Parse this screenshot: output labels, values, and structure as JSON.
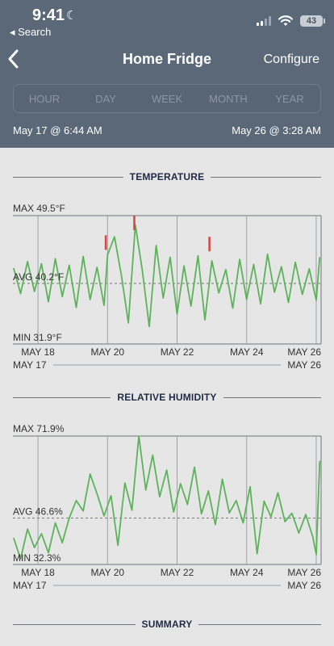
{
  "status_bar": {
    "time": "9:41",
    "back_label": "◂ Search",
    "battery": "43"
  },
  "nav": {
    "title": "Home Fridge",
    "configure": "Configure"
  },
  "segments": [
    "HOUR",
    "DAY",
    "WEEK",
    "MONTH",
    "YEAR"
  ],
  "range": {
    "start": "May 17 @ 6:44 AM",
    "end": "May 26 @ 3:28 AM"
  },
  "sections": {
    "temperature": "TEMPERATURE",
    "humidity": "RELATIVE HUMIDITY",
    "summary": "SUMMARY"
  },
  "colors": {
    "line": "#5cb35a",
    "alert": "#d64545",
    "header": "#5a6878",
    "bg": "#e6e6e6"
  },
  "chart_data": [
    {
      "type": "line",
      "title": "TEMPERATURE",
      "max_label": "MAX 49.5°F",
      "avg_label": "AVG 40.2°F",
      "min_label": "MIN 31.9°F",
      "ylim": [
        31.9,
        49.5
      ],
      "avg": 40.2,
      "x_ticks": [
        "MAY 18",
        "MAY 20",
        "MAY 22",
        "MAY 24",
        "MAY 26"
      ],
      "x_tick_days": [
        18,
        20,
        22,
        24,
        26
      ],
      "xlim": [
        17.28,
        26.14
      ],
      "range_start_label": "MAY 17",
      "range_end_label": "MAY 26",
      "series": [
        {
          "x": [
            17.3,
            17.5,
            17.7,
            17.9,
            18.1,
            18.3,
            18.5,
            18.7,
            18.9,
            19.1,
            19.3,
            19.5,
            19.7,
            19.9,
            20.0,
            20.2,
            20.4,
            20.6,
            20.8,
            21.0,
            21.2,
            21.4,
            21.6,
            21.8,
            22.0,
            22.2,
            22.4,
            22.6,
            22.8,
            23.0,
            23.2,
            23.4,
            23.6,
            23.8,
            24.0,
            24.2,
            24.4,
            24.6,
            24.8,
            25.0,
            25.2,
            25.4,
            25.6,
            25.8,
            26.0,
            26.1
          ],
          "y": [
            42.3,
            38.8,
            43.2,
            39.1,
            42.9,
            37.7,
            43.6,
            38.4,
            42.7,
            36.9,
            43.9,
            38.0,
            42.4,
            37.2,
            44.1,
            46.6,
            41.3,
            34.8,
            48.2,
            42.0,
            34.3,
            45.4,
            38.2,
            43.8,
            36.0,
            42.6,
            37.1,
            44.0,
            35.2,
            43.3,
            38.9,
            42.1,
            36.8,
            43.5,
            38.0,
            42.8,
            37.4,
            44.2,
            39.0,
            42.5,
            37.6,
            43.1,
            38.7,
            42.2,
            37.9,
            43.8
          ],
          "alerts": [
            {
              "x": 19.95,
              "y": 46.8
            },
            {
              "x": 20.77,
              "y": 49.5
            },
            {
              "x": 22.93,
              "y": 46.6
            }
          ]
        }
      ]
    },
    {
      "type": "line",
      "title": "RELATIVE HUMIDITY",
      "max_label": "MAX 71.9%",
      "avg_label": "AVG 46.6%",
      "min_label": "MIN 32.3%",
      "ylim": [
        32.3,
        71.9
      ],
      "avg": 46.6,
      "x_ticks": [
        "MAY 18",
        "MAY 20",
        "MAY 22",
        "MAY 24",
        "MAY 26"
      ],
      "x_tick_days": [
        18,
        20,
        22,
        24,
        26
      ],
      "xlim": [
        17.28,
        26.14
      ],
      "range_start_label": "MAY 17",
      "range_end_label": "MAY 26",
      "series": [
        {
          "x": [
            17.3,
            17.5,
            17.7,
            17.9,
            18.1,
            18.3,
            18.5,
            18.7,
            18.9,
            19.1,
            19.3,
            19.5,
            19.7,
            19.9,
            20.1,
            20.3,
            20.5,
            20.7,
            20.9,
            21.1,
            21.3,
            21.5,
            21.7,
            21.9,
            22.1,
            22.3,
            22.5,
            22.7,
            22.9,
            23.1,
            23.3,
            23.5,
            23.7,
            23.9,
            24.1,
            24.3,
            24.5,
            24.7,
            24.9,
            25.1,
            25.3,
            25.5,
            25.7,
            25.9,
            26.0,
            26.1
          ],
          "y": [
            40.5,
            34.0,
            43.2,
            37.5,
            41.8,
            35.9,
            45.1,
            39.0,
            46.6,
            52.0,
            48.8,
            60.2,
            54.1,
            47.3,
            53.5,
            38.2,
            57.4,
            49.0,
            71.9,
            55.3,
            66.0,
            53.2,
            61.4,
            48.5,
            57.2,
            50.8,
            62.3,
            47.9,
            55.0,
            44.6,
            58.6,
            48.2,
            52.0,
            45.1,
            56.3,
            35.6,
            51.8,
            47.0,
            54.4,
            45.5,
            48.1,
            42.0,
            47.7,
            40.8,
            35.4,
            64.2
          ]
        }
      ]
    }
  ]
}
